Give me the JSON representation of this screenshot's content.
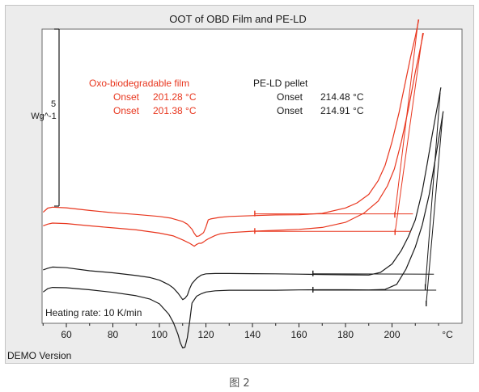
{
  "chart_data": {
    "type": "line",
    "title": "OOT of OBD Film and PE-LD",
    "xunit": "°C",
    "xlim": [
      50,
      225
    ],
    "xticks": [
      60,
      80,
      100,
      120,
      140,
      160,
      180,
      200
    ],
    "scale_bar": {
      "value": "5",
      "unit": "Wg^-1"
    },
    "colors": {
      "red": "#e8361e",
      "black": "#1a1a1a"
    },
    "series": [
      {
        "name": "Oxo-biodegradable film",
        "color": "red",
        "x": [
          50,
          52,
          54,
          60,
          70,
          80,
          90,
          100,
          105,
          110,
          112,
          114,
          115,
          116,
          117,
          118,
          119,
          120,
          121,
          122,
          124,
          126,
          130,
          140,
          150,
          160,
          170,
          180,
          185,
          190,
          194,
          197,
          200,
          203,
          206,
          208,
          210,
          211.5
        ],
        "y": [
          0.45,
          0.69,
          0.75,
          0.71,
          0.55,
          0.42,
          0.32,
          0.2,
          0.1,
          -0.1,
          -0.25,
          -0.55,
          -0.8,
          -0.98,
          -0.95,
          -0.85,
          -0.75,
          -0.42,
          0.0,
          0.05,
          0.1,
          0.15,
          0.2,
          0.25,
          0.29,
          0.3,
          0.38,
          0.7,
          1.0,
          1.5,
          2.3,
          3.2,
          4.6,
          6.3,
          8.3,
          9.6,
          10.8,
          11.8
        ]
      },
      {
        "name": "Oxo-biodegradable film",
        "color": "red",
        "x": [
          50,
          52,
          54,
          60,
          70,
          80,
          90,
          100,
          106,
          110,
          113,
          115,
          116,
          117,
          118,
          119,
          120,
          121,
          122,
          124,
          126,
          130,
          140,
          150,
          160,
          170,
          180,
          188,
          194,
          198,
          201,
          204,
          207,
          210,
          212,
          213.5
        ],
        "y": [
          -0.35,
          -0.25,
          -0.19,
          -0.22,
          -0.35,
          -0.47,
          -0.59,
          -0.78,
          -0.95,
          -1.18,
          -1.38,
          -1.55,
          -1.45,
          -1.38,
          -1.38,
          -1.3,
          -1.2,
          -1.12,
          -1.05,
          -0.92,
          -0.83,
          -0.75,
          -0.67,
          -0.62,
          -0.56,
          -0.45,
          -0.15,
          0.4,
          1.1,
          2.0,
          3.0,
          4.6,
          6.5,
          8.7,
          10.0,
          11.0
        ]
      },
      {
        "name": "PE-LD pellet",
        "color": "black",
        "x": [
          50,
          52,
          54,
          60,
          70,
          80,
          90,
          96,
          100,
          104,
          106,
          108,
          110,
          111,
          112,
          113,
          114,
          116,
          118,
          120,
          124,
          130,
          140,
          150,
          160,
          170,
          180,
          190,
          195,
          200,
          204,
          207,
          210,
          213,
          215,
          217,
          219,
          221
        ],
        "y": [
          -2.95,
          -2.85,
          -2.78,
          -2.82,
          -3.0,
          -3.12,
          -3.28,
          -3.4,
          -3.55,
          -3.82,
          -4.02,
          -4.32,
          -4.7,
          -4.62,
          -4.45,
          -4.05,
          -3.75,
          -3.45,
          -3.25,
          -3.18,
          -3.16,
          -3.16,
          -3.17,
          -3.18,
          -3.2,
          -3.22,
          -3.24,
          -3.25,
          -3.1,
          -2.6,
          -1.8,
          -1.0,
          0.0,
          1.7,
          3.2,
          4.8,
          6.3,
          7.8
        ]
      },
      {
        "name": "PE-LD pellet",
        "color": "black",
        "x": [
          50,
          52,
          54,
          60,
          70,
          80,
          90,
          96,
          100,
          104,
          106,
          108,
          109,
          110,
          111,
          112,
          113,
          114,
          116,
          118,
          120,
          124,
          130,
          140,
          150,
          160,
          170,
          180,
          190,
          197,
          202,
          206,
          210,
          213,
          216,
          218,
          220,
          222
        ],
        "y": [
          -4.25,
          -4.05,
          -3.98,
          -4.0,
          -4.12,
          -4.27,
          -4.47,
          -4.67,
          -4.95,
          -5.55,
          -6.05,
          -6.75,
          -7.25,
          -7.55,
          -7.5,
          -6.95,
          -6.0,
          -4.9,
          -4.5,
          -4.35,
          -4.25,
          -4.18,
          -4.15,
          -4.15,
          -4.15,
          -4.13,
          -4.12,
          -4.12,
          -4.13,
          -4.1,
          -3.8,
          -2.9,
          -1.6,
          -0.3,
          1.5,
          3.1,
          4.7,
          6.4
        ]
      }
    ],
    "tangent_lines": [
      {
        "color": "red",
        "points": [
          [
            141,
            0.35
          ],
          [
            209,
            0.35
          ]
        ]
      },
      {
        "color": "red",
        "points": [
          [
            141,
            -0.68
          ],
          [
            208,
            -0.68
          ]
        ]
      },
      {
        "color": "red",
        "points": [
          [
            201.2,
            0.27
          ],
          [
            211.3,
            11.8
          ]
        ]
      },
      {
        "color": "red",
        "points": [
          [
            201.3,
            -0.75
          ],
          [
            213.2,
            11.0
          ]
        ]
      },
      {
        "color": "black",
        "points": [
          [
            166,
            -3.18
          ],
          [
            218,
            -3.2
          ]
        ]
      },
      {
        "color": "black",
        "points": [
          [
            166,
            -4.14
          ],
          [
            219,
            -4.14
          ]
        ]
      },
      {
        "color": "black",
        "points": [
          [
            214.3,
            -3.98
          ],
          [
            220.7,
            7.5
          ]
        ]
      },
      {
        "color": "black",
        "points": [
          [
            214.7,
            -4.95
          ],
          [
            221.8,
            6.2
          ]
        ]
      }
    ],
    "annotations": {
      "obd_label": "Oxo-biodegradable film",
      "obd_onset_label": "Onset",
      "obd_onsets": [
        "201.28 °C",
        "201.38 °C"
      ],
      "pe_label": "PE-LD pellet",
      "pe_onset_label": "Onset",
      "pe_onsets": [
        "214.48 °C",
        "214.91 °C"
      ],
      "heating_rate": "Heating rate: 10 K/min"
    }
  },
  "footer": {
    "demo_label": "DEMO Version"
  },
  "caption": "图 2"
}
